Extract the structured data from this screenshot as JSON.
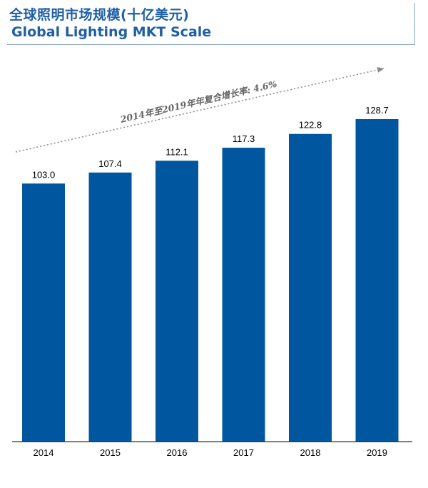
{
  "header": {
    "title_cn": "全球照明市场规模(十亿美元)",
    "title_en": "Global Lighting MKT Scale"
  },
  "colors": {
    "bar": "#0057a0",
    "title": "#1f5fa6",
    "arrow": "#8c8c8c",
    "axis": "#000000"
  },
  "chart_data": {
    "type": "bar",
    "title": "全球照明市场规模(十亿美元)",
    "subtitle": "Global Lighting MKT Scale",
    "categories": [
      "2014",
      "2015",
      "2016",
      "2017",
      "2018",
      "2019"
    ],
    "values": [
      103.0,
      107.4,
      112.1,
      117.3,
      122.8,
      128.7
    ],
    "value_labels": [
      "103.0",
      "107.4",
      "112.1",
      "117.3",
      "122.8",
      "128.7"
    ],
    "ylim": [
      0,
      140
    ],
    "xlabel": "",
    "ylabel": "",
    "grid": false,
    "annotation": "2014年至2019年年复合增长率: 4.6%"
  }
}
